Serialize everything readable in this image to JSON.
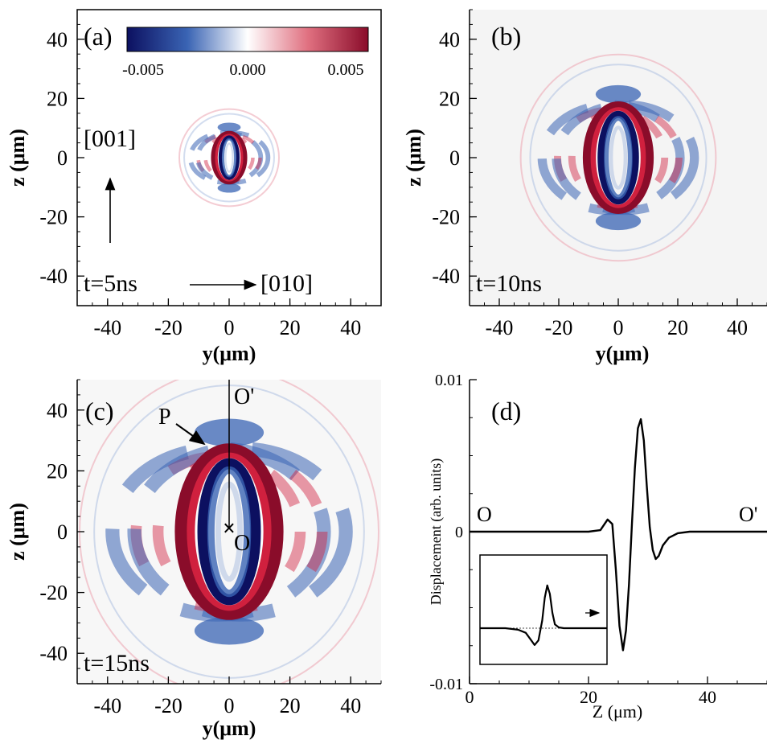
{
  "colorbar": {
    "ticks": [
      "-0.005",
      "0.000",
      "0.005"
    ],
    "colors": {
      "negative": "#0c1060",
      "mid_negative": "#3a64b4",
      "zero": "#ffffff",
      "mid_positive": "#e07080",
      "positive": "#8a0c2a"
    }
  },
  "chart_data": [
    {
      "type": "heatmap",
      "panel_label": "(a)",
      "time_label": "t=5ns",
      "xlabel": "y(μm)",
      "ylabel": "z (μm)",
      "xlim": [
        -50,
        50
      ],
      "ylim": [
        -50,
        50
      ],
      "xticks": [
        -40,
        -20,
        0,
        20,
        40
      ],
      "yticks": [
        -40,
        -20,
        0,
        20,
        40
      ],
      "wavefront": {
        "a": 4,
        "b": 8
      },
      "annotations": {
        "vertical_arrow": "[001]",
        "horizontal_arrow": "[010]"
      }
    },
    {
      "type": "heatmap",
      "panel_label": "(b)",
      "time_label": "t=10ns",
      "xlabel": "y(μm)",
      "ylabel": "z (μm)",
      "xlim": [
        -50,
        50
      ],
      "ylim": [
        -50,
        50
      ],
      "xticks": [
        -40,
        -20,
        0,
        20,
        40
      ],
      "yticks": [
        -40,
        -20,
        0,
        20,
        40
      ],
      "wavefront": {
        "a": 8,
        "b": 17
      }
    },
    {
      "type": "heatmap",
      "panel_label": "(c)",
      "time_label": "t=15ns",
      "xlabel": "y(μm)",
      "ylabel": "z (μm)",
      "xlim": [
        -50,
        50
      ],
      "ylim": [
        -50,
        50
      ],
      "xticks": [
        -40,
        -20,
        0,
        20,
        40
      ],
      "yticks": [
        -40,
        -20,
        0,
        20,
        40
      ],
      "wavefront": {
        "a": 12,
        "b": 26
      },
      "annotations": {
        "point_P": "P",
        "origin": "O",
        "end": "O'"
      }
    },
    {
      "type": "line",
      "panel_label": "(d)",
      "xlabel": "Z (μm)",
      "ylabel": "Displacement (arb. units)",
      "xlim": [
        0,
        50
      ],
      "ylim": [
        -0.01,
        0.01
      ],
      "xticks": [
        0,
        20,
        40
      ],
      "yticklabels": [
        "0.01",
        "0",
        "-0.01"
      ],
      "series": [
        {
          "x": [
            0,
            20,
            22,
            23.2,
            24,
            24.6,
            25.2,
            25.8,
            26.3,
            26.8,
            27.3,
            27.8,
            28.3,
            28.8,
            29.3,
            29.8,
            30.3,
            30.8,
            31.3,
            31.8,
            32.5,
            33.5,
            35,
            37,
            40,
            50
          ],
          "y": [
            0,
            0,
            0.0001,
            0.0008,
            0.0005,
            -0.0025,
            -0.0062,
            -0.0078,
            -0.0065,
            -0.0035,
            0.0005,
            0.0042,
            0.0068,
            0.0074,
            0.006,
            0.003,
            0.0003,
            -0.0012,
            -0.0018,
            -0.0016,
            -0.0009,
            -0.0004,
            -0.0001,
            0,
            0,
            0
          ]
        }
      ],
      "annotations": {
        "left": "O",
        "right": "O'"
      },
      "inset": {
        "x": [
          0,
          10,
          15,
          18,
          20,
          21.5,
          23,
          24.5,
          25.5,
          26.5,
          27.5,
          28.5,
          29.5,
          31,
          33,
          36,
          40,
          45,
          50
        ],
        "y": [
          0,
          0,
          -0.02,
          -0.06,
          -0.15,
          -0.22,
          -0.16,
          0.1,
          0.4,
          0.56,
          0.45,
          0.2,
          0.05,
          0.01,
          0,
          0,
          0,
          0,
          0
        ]
      }
    }
  ]
}
